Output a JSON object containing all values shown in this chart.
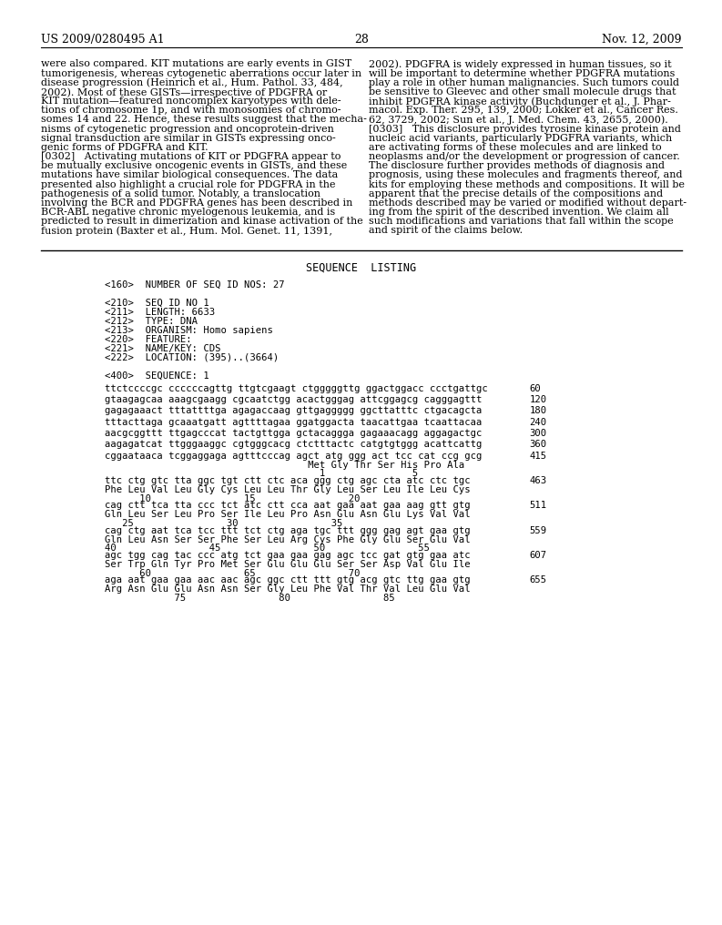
{
  "background_color": "#ffffff",
  "header_left": "US 2009/0280495 A1",
  "header_right": "Nov. 12, 2009",
  "page_number": "28",
  "left_column_text": [
    "were also compared. KIT mutations are early events in GIST",
    "tumorigenesis, whereas cytogenetic aberrations occur later in",
    "disease progression (Heinrich et al., Hum. Pathol. 33, 484,",
    "2002). Most of these GISTs—irrespective of PDGFRA or",
    "KIT mutation—featured noncomplex karyotypes with dele-",
    "tions of chromosome 1p, and with monosomies of chromo-",
    "somes 14 and 22. Hence, these results suggest that the mecha-",
    "nisms of cytogenetic progression and oncoprotein-driven",
    "signal transduction are similar in GISTs expressing onco-",
    "genic forms of PDGFRA and KIT.",
    "[0302]   Activating mutations of KIT or PDGFRA appear to",
    "be mutually exclusive oncogenic events in GISTs, and these",
    "mutations have similar biological consequences. The data",
    "presented also highlight a crucial role for PDGFRA in the",
    "pathogenesis of a solid tumor. Notably, a translocation",
    "involving the BCR and PDGFRA genes has been described in",
    "BCR-ABL negative chronic myelogenous leukemia, and is",
    "predicted to result in dimerization and kinase activation of the",
    "fusion protein (Baxter et al., Hum. Mol. Genet. 11, 1391,"
  ],
  "right_column_text": [
    "2002). PDGFRA is widely expressed in human tissues, so it",
    "will be important to determine whether PDGFRA mutations",
    "play a role in other human malignancies. Such tumors could",
    "be sensitive to Gleevec and other small molecule drugs that",
    "inhibit PDGFRA kinase activity (Buchdunger et al., J. Phar-",
    "macol. Exp. Ther. 295, 139, 2000; Lokker et al., Cancer Res.",
    "62, 3729, 2002; Sun et al., J. Med. Chem. 43, 2655, 2000).",
    "[0303]   This disclosure provides tyrosine kinase protein and",
    "nucleic acid variants, particularly PDGFRA variants, which",
    "are activating forms of these molecules and are linked to",
    "neoplasms and/or the development or progression of cancer.",
    "The disclosure further provides methods of diagnosis and",
    "prognosis, using these molecules and fragments thereof, and",
    "kits for employing these methods and compositions. It will be",
    "apparent that the precise details of the compositions and",
    "methods described may be varied or modified without depart-",
    "ing from the spirit of the described invention. We claim all",
    "such modifications and variations that fall within the scope",
    "and spirit of the claims below."
  ],
  "sequence_listing_title": "SEQUENCE  LISTING",
  "sequence_header": [
    "<160>  NUMBER OF SEQ ID NOS: 27",
    "",
    "<210>  SEQ ID NO 1",
    "<211>  LENGTH: 6633",
    "<212>  TYPE: DNA",
    "<213>  ORGANISM: Homo sapiens",
    "<220>  FEATURE:",
    "<221>  NAME/KEY: CDS",
    "<222>  LOCATION: (395)..(3664)",
    "",
    "<400>  SEQUENCE: 1"
  ],
  "sequence_blocks": [
    {
      "dna": "ttctccccgc ccccccagttg ttgtcgaagt ctgggggttg ggactggacc ccctgattgc",
      "num": "60",
      "aa": null,
      "pos": null
    },
    {
      "dna": "gtaagagcaa aaagcgaagg cgcaatctgg acactgggag attcggagcg cagggagttt",
      "num": "120",
      "aa": null,
      "pos": null
    },
    {
      "dna": "gagagaaact tttattttga agagaccaag gttgaggggg ggcttatttc ctgacagcta",
      "num": "180",
      "aa": null,
      "pos": null
    },
    {
      "dna": "tttacttaga gcaaatgatt agttttagaa ggatggacta taacattgaa tcaattacaa",
      "num": "240",
      "aa": null,
      "pos": null
    },
    {
      "dna": "aacgcggttt ttgagcccat tactgttgga gctacaggga gagaaacagg aggagactgc",
      "num": "300",
      "aa": null,
      "pos": null
    },
    {
      "dna": "aagagatcat ttgggaaggc cgtgggcacg ctctttactc catgtgtggg acattcattg",
      "num": "360",
      "aa": null,
      "pos": null
    },
    {
      "dna": "cggaataaca tcggaggaga agtttcccag agct atg ggg act tcc cat ccg gcg",
      "num": "415",
      "aa": "                                   Met Gly Thr Ser His Pro Ala",
      "pos": "                                     1               5"
    },
    {
      "dna": "ttc ctg gtc tta ggc tgt ctt ctc aca ggg ctg agc cta atc ctc tgc",
      "num": "463",
      "aa": "Phe Leu Val Leu Gly Cys Leu Leu Thr Gly Leu Ser Leu Ile Leu Cys",
      "pos": "      10                15                20"
    },
    {
      "dna": "cag ctt tca tta ccc tct atc ctt cca aat gaa aat gaa aag gtt gtg",
      "num": "511",
      "aa": "Gln Leu Ser Leu Pro Ser Ile Leu Pro Asn Glu Asn Glu Lys Val Val",
      "pos": "   25                30                35"
    },
    {
      "dna": "cag ctg aat tca tcc ttt tct ctg aga tgc ttt ggg gag agt gaa gtg",
      "num": "559",
      "aa": "Gln Leu Asn Ser Ser Phe Ser Leu Arg Cys Phe Gly Glu Ser Glu Val",
      "pos": "40                45                50                55"
    },
    {
      "dna": "agc tgg cag tac ccc atg tct gaa gaa gag agc tcc gat gtg gaa atc",
      "num": "607",
      "aa": "Ser Trp Gln Tyr Pro Met Ser Glu Glu Glu Ser Ser Asp Val Glu Ile",
      "pos": "      60                65                70"
    },
    {
      "dna": "aga aat gaa gaa aac aac agc ggc ctt ttt gtg acg gtc ttg gaa gtg",
      "num": "655",
      "aa": "Arg Asn Glu Glu Asn Asn Ser Gly Leu Phe Val Thr Val Leu Glu Val",
      "pos": "            75                80                85"
    }
  ]
}
